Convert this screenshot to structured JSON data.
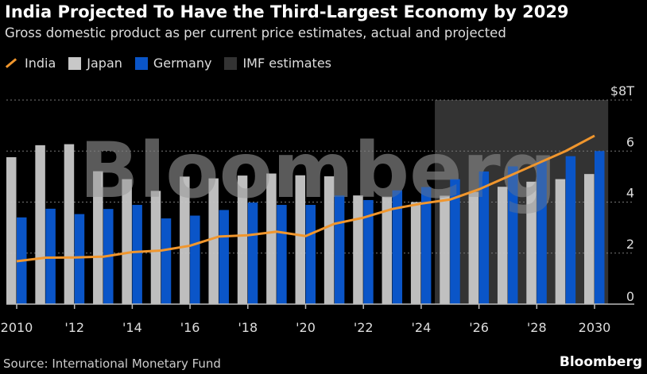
{
  "title": "India Projected To Have the Third-Largest Economy by 2029",
  "subtitle": "Gross domestic product as per current price estimates, actual and projected",
  "legend": {
    "india": "India",
    "japan": "Japan",
    "germany": "Germany",
    "imf": "IMF estimates"
  },
  "source": "Source: International Monetary Fund",
  "brand": "Bloomberg",
  "watermark": "Bloomberg",
  "colors": {
    "india": "#f0962d",
    "japan": "#c8c8c8",
    "germany": "#0a55c8",
    "imf": "#333333"
  },
  "chart_data": {
    "type": "bar",
    "x": [
      2010,
      2011,
      2012,
      2013,
      2014,
      2015,
      2016,
      2017,
      2018,
      2019,
      2020,
      2021,
      2022,
      2023,
      2024,
      2025,
      2026,
      2027,
      2028,
      2029,
      2030
    ],
    "x_tick_labels": {
      "2010": "2010",
      "2012": "'12",
      "2014": "'14",
      "2016": "'16",
      "2018": "'18",
      "2020": "'20",
      "2022": "'22",
      "2024": "'24",
      "2026": "'26",
      "2028": "'28",
      "2030": "2030"
    },
    "y_ticks": [
      {
        "v": 0,
        "label": "0"
      },
      {
        "v": 2,
        "label": "2"
      },
      {
        "v": 4,
        "label": "4"
      },
      {
        "v": 6,
        "label": "6"
      },
      {
        "v": 8,
        "label": "$8T"
      }
    ],
    "ylim": [
      0,
      8
    ],
    "y_axis_side": "right",
    "grid": true,
    "legend_placement": "top-left",
    "shaded_region": {
      "label": "IMF estimates",
      "from": 2025,
      "to": 2030
    },
    "series": [
      {
        "name": "Japan",
        "type": "bar",
        "values": [
          5.76,
          6.23,
          6.27,
          5.21,
          4.9,
          4.44,
          5.0,
          4.93,
          5.04,
          5.12,
          5.05,
          5.01,
          4.26,
          4.21,
          4.0,
          4.25,
          4.4,
          4.6,
          4.8,
          4.9,
          5.1
        ]
      },
      {
        "name": "Germany",
        "type": "bar",
        "values": [
          3.4,
          3.74,
          3.53,
          3.73,
          3.89,
          3.36,
          3.47,
          3.69,
          3.98,
          3.89,
          3.89,
          4.26,
          4.08,
          4.46,
          4.59,
          4.9,
          5.2,
          5.4,
          5.6,
          5.8,
          6.0
        ]
      },
      {
        "name": "India",
        "type": "line",
        "values": [
          1.68,
          1.82,
          1.83,
          1.86,
          2.04,
          2.1,
          2.29,
          2.65,
          2.7,
          2.84,
          2.67,
          3.15,
          3.39,
          3.73,
          3.94,
          4.1,
          4.5,
          5.0,
          5.5,
          6.0,
          6.6
        ]
      }
    ]
  }
}
